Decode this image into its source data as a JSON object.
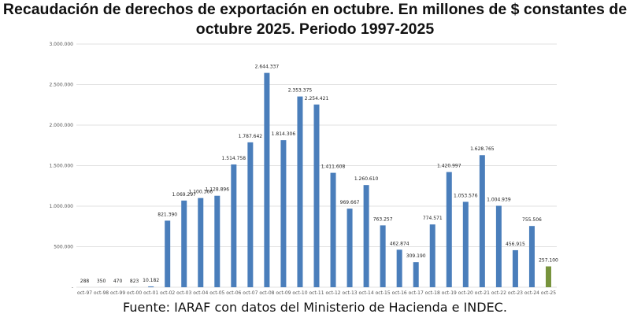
{
  "title_line1": "Recaudación de derechos de exportación en octubre. En millones de $ constantes de",
  "title_line2": "octubre 2025. Periodo 1997-2025",
  "source": "Fuente: IARAF con datos del Ministerio de Hacienda e INDEC.",
  "colors": {
    "bar": "#4a7ebb",
    "highlight": "#77933c",
    "grid": "#e0e0e0"
  },
  "chart_data": {
    "type": "bar",
    "categories": [
      "oct-97",
      "oct-98",
      "oct-99",
      "oct-00",
      "oct-01",
      "oct-02",
      "oct-03",
      "oct-04",
      "oct-05",
      "oct-06",
      "oct-07",
      "oct-08",
      "oct-09",
      "oct-10",
      "oct-11",
      "oct-12",
      "oct-13",
      "oct-14",
      "oct-15",
      "oct-16",
      "oct-17",
      "oct-18",
      "oct-19",
      "oct-20",
      "oct-21",
      "oct-22",
      "oct-23",
      "oct-24",
      "oct-25"
    ],
    "values": [
      288,
      350,
      470,
      823,
      10182,
      821390,
      1069297,
      1100366,
      1128896,
      1514758,
      1787642,
      2644337,
      1814306,
      2353375,
      2254421,
      1411608,
      969667,
      1260610,
      763257,
      462874,
      309190,
      774571,
      1420997,
      1053576,
      1628765,
      1004939,
      456915,
      755506,
      257100
    ],
    "labels": [
      "288",
      "350",
      "470",
      "823",
      "10.182",
      "821.390",
      "1.069.297",
      "1.100.366",
      "1.128.896",
      "1.514.758",
      "1.787.642",
      "2.644.337",
      "1.814.306",
      "2.353.375",
      "2.254.421",
      "1.411.608",
      "969.667",
      "1.260.610",
      "763.257",
      "462.874",
      "309.190",
      "774.571",
      "1.420.997",
      "1.053.576",
      "1.628.765",
      "1.004.939",
      "456.915",
      "755.506",
      "257.100"
    ],
    "highlight_index": 28,
    "yticks": [
      0,
      500000,
      1000000,
      1500000,
      2000000,
      2500000,
      3000000
    ],
    "ytick_labels": [
      "-",
      "500.000",
      "1.000.000",
      "1.500.000",
      "2.000.000",
      "2.500.000",
      "3.000.000"
    ],
    "ylim": [
      0,
      3000000
    ],
    "grid": true,
    "legend": "none"
  }
}
